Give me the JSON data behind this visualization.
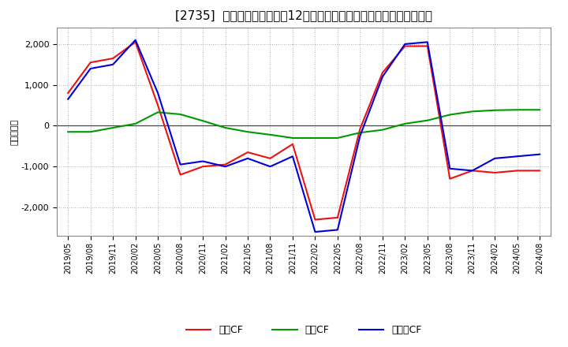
{
  "title": "[2735]  キャッシュフローの12か月移動合計の対前年同期増減額の推移",
  "ylabel": "（百万円）",
  "x_labels": [
    "2019/05",
    "2019/08",
    "2019/11",
    "2020/02",
    "2020/05",
    "2020/08",
    "2020/11",
    "2021/02",
    "2021/05",
    "2021/08",
    "2021/11",
    "2022/02",
    "2022/05",
    "2022/08",
    "2022/11",
    "2023/02",
    "2023/05",
    "2023/08",
    "2023/11",
    "2024/02",
    "2024/05",
    "2024/08"
  ],
  "eigyo_cf": [
    800,
    1550,
    1650,
    2050,
    500,
    -1200,
    -1000,
    -950,
    -650,
    -800,
    -450,
    -2300,
    -2250,
    -80,
    1300,
    1950,
    1950,
    -1300,
    -1100,
    -1150,
    -1100,
    -1100
  ],
  "toshi_cf": [
    -150,
    -150,
    -50,
    50,
    330,
    280,
    120,
    -50,
    -150,
    -220,
    -300,
    -300,
    -300,
    -170,
    -100,
    50,
    130,
    270,
    350,
    380,
    390,
    390
  ],
  "free_cf": [
    650,
    1400,
    1500,
    2100,
    800,
    -950,
    -870,
    -1000,
    -800,
    -1000,
    -750,
    -2600,
    -2550,
    -250,
    1200,
    2000,
    2050,
    -1050,
    -1100,
    -800,
    -750,
    -700
  ],
  "eigyo_color": "#ee1111",
  "toshi_color": "#009900",
  "free_color": "#0000dd",
  "background_color": "#ffffff",
  "plot_bg_color": "#ffffff",
  "grid_color": "#aaaaaa",
  "ylim": [
    -2700,
    2400
  ],
  "yticks": [
    -2000,
    -1000,
    0,
    1000,
    2000
  ],
  "title_fontsize": 11,
  "legend_labels": [
    "営業CF",
    "投資CF",
    "フリーCF"
  ]
}
